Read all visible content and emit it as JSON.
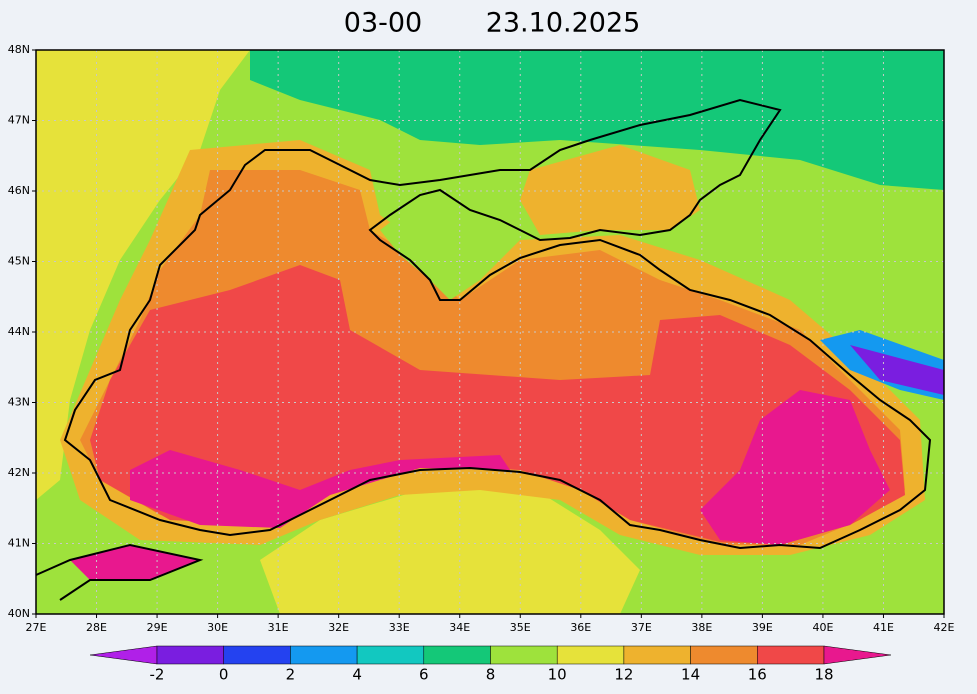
{
  "map": {
    "title": [
      "03-00",
      "23.10.2025"
    ],
    "xlim": [
      27,
      42
    ],
    "ylim": [
      40,
      48
    ],
    "xticks": [
      {
        "value": 27,
        "label": "27E"
      },
      {
        "value": 28,
        "label": "28E"
      },
      {
        "value": 29,
        "label": "29E"
      },
      {
        "value": 30,
        "label": "30E"
      },
      {
        "value": 31,
        "label": "31E"
      },
      {
        "value": 32,
        "label": "32E"
      },
      {
        "value": 33,
        "label": "33E"
      },
      {
        "value": 34,
        "label": "34E"
      },
      {
        "value": 35,
        "label": "35E"
      },
      {
        "value": 36,
        "label": "36E"
      },
      {
        "value": 37,
        "label": "37E"
      },
      {
        "value": 38,
        "label": "38E"
      },
      {
        "value": 39,
        "label": "39E"
      },
      {
        "value": 40,
        "label": "40E"
      },
      {
        "value": 41,
        "label": "41E"
      },
      {
        "value": 42,
        "label": "42E"
      }
    ],
    "yticks": [
      {
        "value": 40,
        "label": "40N"
      },
      {
        "value": 41,
        "label": "41N"
      },
      {
        "value": 42,
        "label": "42N"
      },
      {
        "value": 43,
        "label": "43N"
      },
      {
        "value": 44,
        "label": "44N"
      },
      {
        "value": 45,
        "label": "45N"
      },
      {
        "value": 46,
        "label": "46N"
      },
      {
        "value": 47,
        "label": "47N"
      },
      {
        "value": 48,
        "label": "48N"
      }
    ],
    "grid": true,
    "colorbar": {
      "levels": [
        -2,
        0,
        2,
        4,
        6,
        8,
        10,
        12,
        14,
        16,
        18
      ],
      "colors": [
        "#b020e8",
        "#7a1ee0",
        "#2442f0",
        "#1499f0",
        "#12c8c0",
        "#14c878",
        "#9ee23c",
        "#e6e23a",
        "#eeb22e",
        "#ee8a2e",
        "#f04848",
        "#e8188e"
      ]
    }
  }
}
